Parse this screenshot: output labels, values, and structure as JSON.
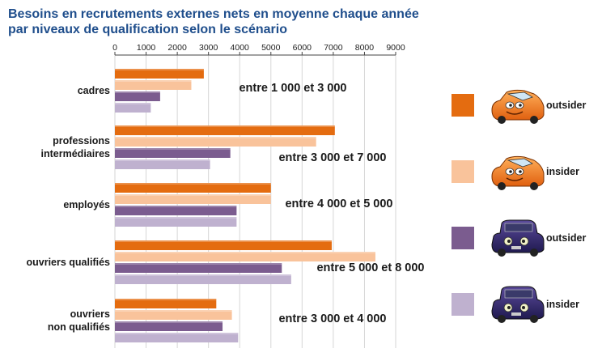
{
  "chart_data": {
    "type": "bar",
    "orientation": "horizontal",
    "title": "Besoins en recrutements externes nets en moyenne chaque année\npar niveaux de qualification selon le scénario",
    "xlim": [
      0,
      9000
    ],
    "x_ticks": [
      "0",
      "1000",
      "2000",
      "3000",
      "4000",
      "5000",
      "6000",
      "7000",
      "8000",
      "9000"
    ],
    "grid": true,
    "legend_position": "right",
    "categories": [
      [
        "cadres"
      ],
      [
        "professions",
        "intermédiaires"
      ],
      [
        "employés"
      ],
      [
        "ouvriers qualifiés"
      ],
      [
        "ouvriers",
        "non qualifiés"
      ]
    ],
    "annotations": [
      "entre 1 000 et 3 000",
      "entre 3 000 et 7 000",
      "entre 4 000 et 5 000",
      "entre 5 000 et 8 000",
      "entre 3 000 et 4 000"
    ],
    "series": [
      {
        "name": "outsider",
        "color": "#e46c10",
        "icon": "orange-car-icon",
        "values": [
          2850,
          7050,
          5000,
          6950,
          3250
        ]
      },
      {
        "name": "insider",
        "color": "#f9c39b",
        "icon": "orange-car-icon",
        "values": [
          2450,
          6450,
          5000,
          8350,
          3750
        ]
      },
      {
        "name": "outsider",
        "color": "#7b5c8f",
        "icon": "purple-car-icon",
        "values": [
          1450,
          3700,
          3900,
          5350,
          3450
        ]
      },
      {
        "name": "insider",
        "color": "#bfb1cf",
        "icon": "purple-car-icon",
        "values": [
          1150,
          3050,
          3900,
          5650,
          3950
        ]
      }
    ]
  }
}
